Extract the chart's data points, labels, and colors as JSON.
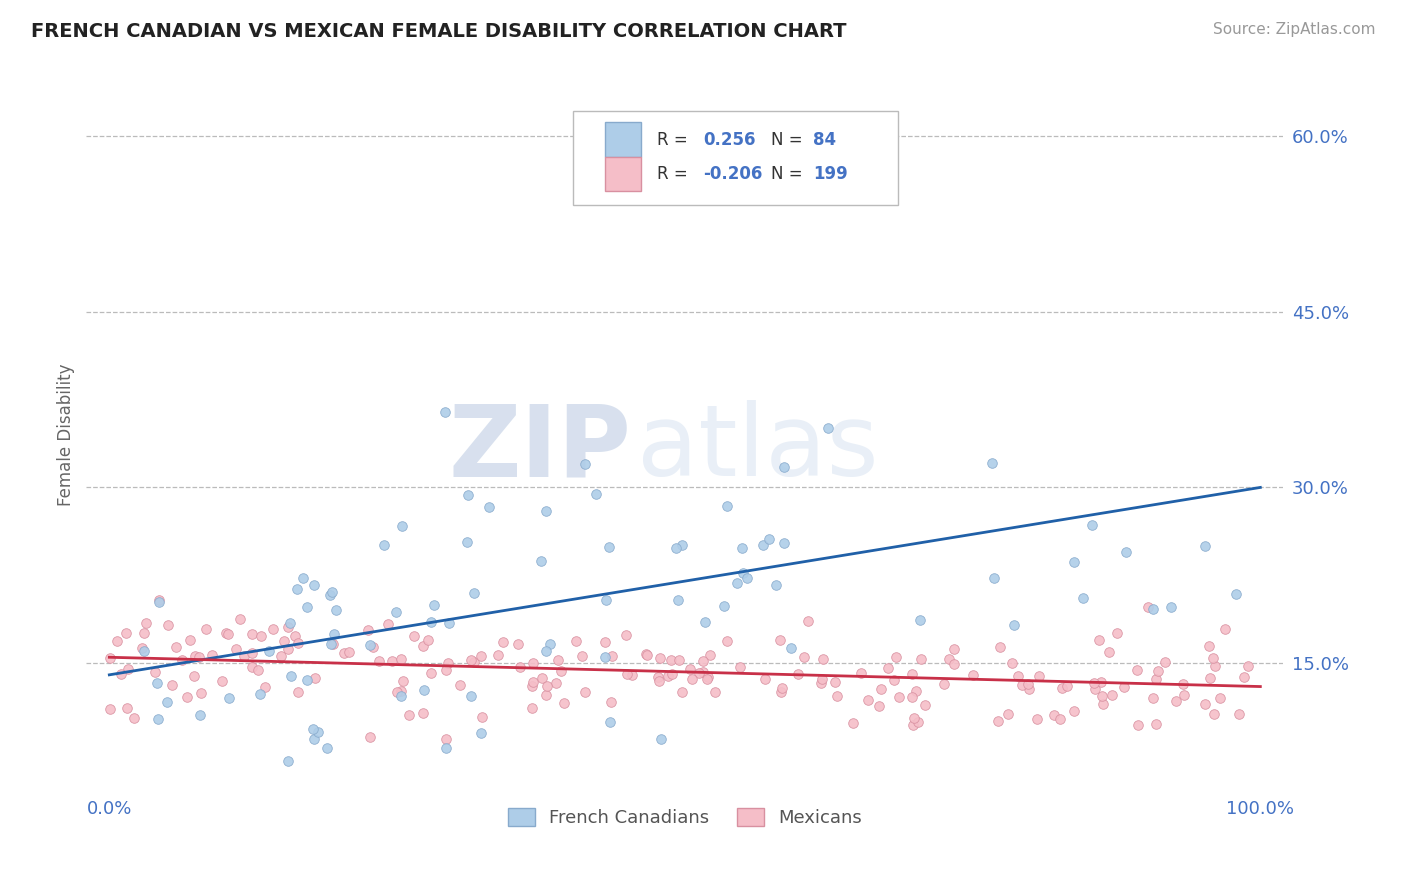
{
  "title": "FRENCH CANADIAN VS MEXICAN FEMALE DISABILITY CORRELATION CHART",
  "source": "Source: ZipAtlas.com",
  "ylabel": "Female Disability",
  "blue_label": "French Canadians",
  "pink_label": "Mexicans",
  "blue_R": 0.256,
  "blue_N": 84,
  "pink_R": -0.206,
  "pink_N": 199,
  "blue_color": "#aecde8",
  "pink_color": "#f5bec8",
  "blue_line_color": "#2060a8",
  "pink_line_color": "#c83048",
  "blue_edge_color": "#88aacc",
  "pink_edge_color": "#d890a0",
  "watermark_zip": "ZIP",
  "watermark_atlas": "atlas",
  "xlim": [
    -0.02,
    1.02
  ],
  "ylim": [
    0.04,
    0.65
  ],
  "yticks": [
    0.15,
    0.3,
    0.45,
    0.6
  ],
  "ytick_labels": [
    "15.0%",
    "30.0%",
    "45.0%",
    "60.0%"
  ],
  "xticks": [
    0.0,
    1.0
  ],
  "xtick_labels": [
    "0.0%",
    "100.0%"
  ],
  "blue_trend_x0": 0.0,
  "blue_trend_y0": 0.14,
  "blue_trend_x1": 1.0,
  "blue_trend_y1": 0.3,
  "pink_trend_x0": 0.0,
  "pink_trend_y0": 0.155,
  "pink_trend_x1": 1.0,
  "pink_trend_y1": 0.13,
  "title_color": "#222222",
  "axis_color": "#4472c4",
  "grid_color": "#bbbbbb",
  "background_color": "#ffffff",
  "legend_color": "#4472c4"
}
